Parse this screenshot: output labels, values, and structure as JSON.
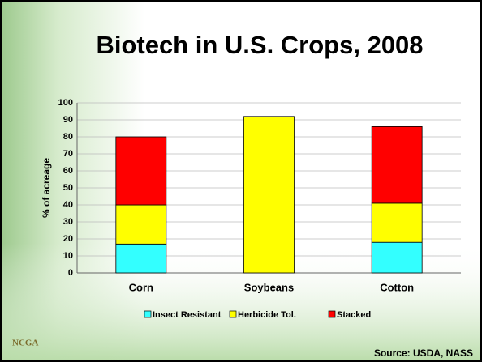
{
  "chart_data": {
    "type": "stacked_bar",
    "title": "Biotech in U.S. Crops, 2008",
    "ylabel": "% of acreage",
    "categories": [
      "Corn",
      "Soybeans",
      "Cotton"
    ],
    "series": [
      {
        "name": "Insect Resistant",
        "color": "#33ffff",
        "values": [
          17,
          0,
          18
        ]
      },
      {
        "name": "Herbicide Tol.",
        "color": "#ffff00",
        "values": [
          23,
          92,
          23
        ]
      },
      {
        "name": "Stacked",
        "color": "#ff0000",
        "values": [
          40,
          0,
          45
        ]
      }
    ],
    "ylim": [
      0,
      100
    ],
    "yticks": [
      0,
      10,
      20,
      30,
      40,
      50,
      60,
      70,
      80,
      90,
      100
    ],
    "grid": true,
    "legend": "bottom",
    "source": "Source: USDA, NASS",
    "logo": "NCGA"
  }
}
